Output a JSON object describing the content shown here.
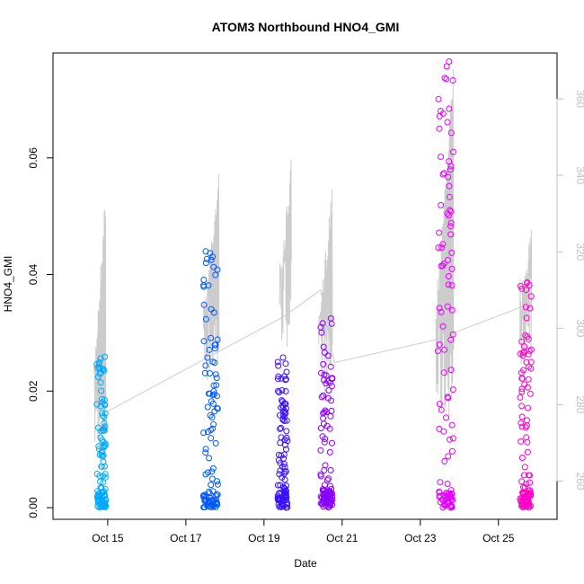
{
  "chart_data": {
    "type": "scatter",
    "title": "ATOM3 Northbound HNO4_GMI",
    "xlabel": "Date",
    "ylabel": "HNO4_GMI",
    "x_ticks": [
      "Oct 15",
      "Oct 17",
      "Oct 19",
      "Oct 21",
      "Oct 23",
      "Oct 25"
    ],
    "xlim_days": [
      13.6,
      26.5
    ],
    "ylim": [
      -0.002,
      0.078
    ],
    "y_ticks": [
      "0.00",
      "0.02",
      "0.04",
      "0.06"
    ],
    "y2_ticks": [
      "260",
      "280",
      "300",
      "320",
      "340",
      "360"
    ],
    "y2lim": [
      250,
      372
    ],
    "right_axis_color": "#c0c0c0",
    "background_line_color": "#cccccc",
    "point_colors": [
      "#00a8ff",
      "#0058ff",
      "#3a10ff",
      "#8a00ff",
      "#e600ff",
      "#ff00c8"
    ],
    "scatter_groups": [
      {
        "date": "Oct 14.8",
        "color": "#00a8ff",
        "x_range": [
          14.72,
          14.95
        ],
        "y_max": 0.026
      },
      {
        "date": "Oct 17.6",
        "color": "#0058ff",
        "x_range": [
          17.45,
          17.82
        ],
        "y_max": 0.044
      },
      {
        "date": "Oct 19.5",
        "color": "#3a10ff",
        "x_range": [
          19.35,
          19.6
        ],
        "y_max": 0.026
      },
      {
        "date": "Oct 20.6",
        "color": "#8a00ff",
        "x_range": [
          20.45,
          20.75
        ],
        "y_max": 0.033
      },
      {
        "date": "Oct 23.6",
        "color": "#e600ff",
        "x_range": [
          23.45,
          23.85
        ],
        "y_max": 0.077
      },
      {
        "date": "Oct 25.7",
        "color": "#ff00c8",
        "x_range": [
          25.55,
          25.85
        ],
        "y_max": 0.039
      }
    ],
    "background_segments": [
      {
        "x_range": [
          14.65,
          14.95
        ],
        "y2_range": [
          265,
          338
        ]
      },
      {
        "x_range": [
          17.45,
          17.85
        ],
        "y2_range": [
          285,
          344
        ]
      },
      {
        "x_range": [
          19.4,
          19.7
        ],
        "y2_range": [
          295,
          345
        ]
      },
      {
        "x_range": [
          20.4,
          20.75
        ],
        "y2_range": [
          280,
          340
        ]
      },
      {
        "x_range": [
          23.4,
          23.85
        ],
        "y2_range": [
          275,
          370
        ]
      },
      {
        "x_range": [
          25.55,
          25.85
        ],
        "y2_range": [
          290,
          328
        ]
      }
    ],
    "connector_line": [
      {
        "x": 14.95,
        "y2": 278
      },
      {
        "x": 19.5,
        "y2": 303
      },
      {
        "x": 20.45,
        "y2": 310
      },
      {
        "x": 20.8,
        "y2": 291
      },
      {
        "x": 23.4,
        "y2": 297
      },
      {
        "x": 25.7,
        "y2": 306
      }
    ]
  }
}
